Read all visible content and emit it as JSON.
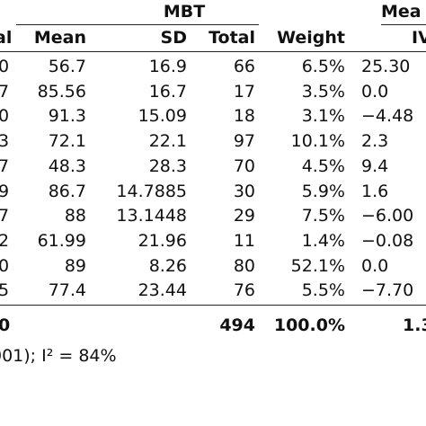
{
  "group_header": "MBT",
  "group_header_right": "Mea",
  "columns": {
    "prev_cut": "al",
    "mean": "Mean",
    "sd": "SD",
    "total": "Total",
    "weight": "Weight",
    "iv_cut": "IV"
  },
  "rows": [
    {
      "left": "0",
      "mean": "56.7",
      "sd": "16.9",
      "total": "66",
      "weight": "6.5%",
      "iv": "25.30"
    },
    {
      "left": "7",
      "mean": "85.56",
      "sd": "16.7",
      "total": "17",
      "weight": "3.5%",
      "iv": "0.0"
    },
    {
      "left": "0",
      "mean": "91.3",
      "sd": "15.09",
      "total": "18",
      "weight": "3.1%",
      "iv": "−4.48"
    },
    {
      "left": "3",
      "mean": "72.1",
      "sd": "22.1",
      "total": "97",
      "weight": "10.1%",
      "iv": "2.3"
    },
    {
      "left": "7",
      "mean": "48.3",
      "sd": "28.3",
      "total": "70",
      "weight": "4.5%",
      "iv": "9.4"
    },
    {
      "left": "9",
      "mean": "86.7",
      "sd": "14.7885",
      "total": "30",
      "weight": "5.9%",
      "iv": "1.6"
    },
    {
      "left": "7",
      "mean": "88",
      "sd": "13.1448",
      "total": "29",
      "weight": "7.5%",
      "iv": "−6.00"
    },
    {
      "left": "2",
      "mean": "61.99",
      "sd": "21.96",
      "total": "11",
      "weight": "1.4%",
      "iv": "−0.08"
    },
    {
      "left": "0",
      "mean": "89",
      "sd": "8.26",
      "total": "80",
      "weight": "52.1%",
      "iv": "0.0"
    },
    {
      "left": "5",
      "mean": "77.4",
      "sd": "23.44",
      "total": "76",
      "weight": "5.5%",
      "iv": "−7.70"
    }
  ],
  "total_row": {
    "left": "0",
    "total": "494",
    "weight": "100.0%",
    "iv": "1.3"
  },
  "footer_text": "001); I² = 84%"
}
